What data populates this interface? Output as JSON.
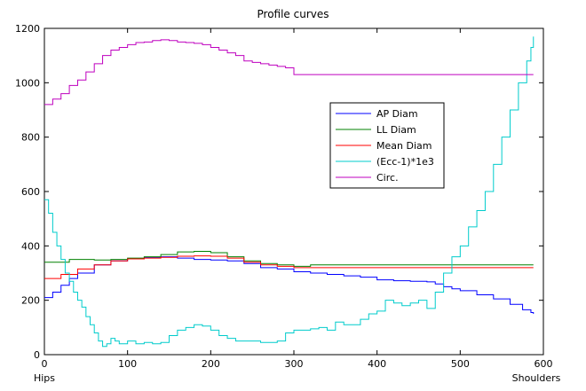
{
  "chart_data": {
    "type": "line",
    "title": "Profile curves",
    "xlim": [
      0,
      600
    ],
    "ylim": [
      0,
      1200
    ],
    "x_ticks": [
      0,
      100,
      200,
      300,
      400,
      500,
      600
    ],
    "y_ticks": [
      0,
      200,
      400,
      600,
      800,
      1000,
      1200
    ],
    "x_end_labels": {
      "start": "Hips",
      "end": "Shoulders"
    },
    "legend_position": "center-right",
    "grid": false,
    "series": [
      {
        "name": "AP Diam",
        "color": "#0000ff",
        "points": [
          [
            0,
            210
          ],
          [
            10,
            230
          ],
          [
            20,
            255
          ],
          [
            30,
            280
          ],
          [
            40,
            300
          ],
          [
            60,
            330
          ],
          [
            80,
            345
          ],
          [
            100,
            352
          ],
          [
            120,
            358
          ],
          [
            140,
            360
          ],
          [
            160,
            355
          ],
          [
            180,
            350
          ],
          [
            200,
            348
          ],
          [
            220,
            345
          ],
          [
            240,
            335
          ],
          [
            260,
            320
          ],
          [
            280,
            315
          ],
          [
            300,
            305
          ],
          [
            320,
            300
          ],
          [
            340,
            295
          ],
          [
            360,
            290
          ],
          [
            380,
            285
          ],
          [
            400,
            275
          ],
          [
            420,
            272
          ],
          [
            440,
            270
          ],
          [
            460,
            268
          ],
          [
            470,
            260
          ],
          [
            480,
            250
          ],
          [
            490,
            242
          ],
          [
            500,
            235
          ],
          [
            520,
            220
          ],
          [
            540,
            205
          ],
          [
            560,
            185
          ],
          [
            575,
            165
          ],
          [
            585,
            155
          ],
          [
            588,
            150
          ]
        ]
      },
      {
        "name": "LL Diam",
        "color": "#008000",
        "points": [
          [
            0,
            340
          ],
          [
            20,
            340
          ],
          [
            30,
            350
          ],
          [
            60,
            348
          ],
          [
            80,
            350
          ],
          [
            100,
            355
          ],
          [
            120,
            360
          ],
          [
            140,
            368
          ],
          [
            160,
            378
          ],
          [
            180,
            380
          ],
          [
            200,
            375
          ],
          [
            220,
            360
          ],
          [
            240,
            345
          ],
          [
            260,
            335
          ],
          [
            280,
            330
          ],
          [
            300,
            325
          ],
          [
            320,
            330
          ],
          [
            400,
            330
          ],
          [
            500,
            330
          ],
          [
            588,
            330
          ]
        ]
      },
      {
        "name": "Mean Diam",
        "color": "#ff0000",
        "points": [
          [
            0,
            280
          ],
          [
            20,
            295
          ],
          [
            40,
            315
          ],
          [
            60,
            330
          ],
          [
            80,
            345
          ],
          [
            100,
            352
          ],
          [
            120,
            355
          ],
          [
            140,
            358
          ],
          [
            160,
            362
          ],
          [
            180,
            363
          ],
          [
            200,
            362
          ],
          [
            220,
            355
          ],
          [
            240,
            340
          ],
          [
            260,
            330
          ],
          [
            280,
            325
          ],
          [
            300,
            320
          ],
          [
            400,
            320
          ],
          [
            500,
            320
          ],
          [
            588,
            320
          ]
        ]
      },
      {
        "name": "(Ecc-1)*1e3",
        "color": "#00cccc",
        "points": [
          [
            0,
            570
          ],
          [
            5,
            520
          ],
          [
            10,
            450
          ],
          [
            15,
            400
          ],
          [
            20,
            350
          ],
          [
            25,
            300
          ],
          [
            30,
            270
          ],
          [
            35,
            230
          ],
          [
            40,
            200
          ],
          [
            45,
            175
          ],
          [
            50,
            140
          ],
          [
            55,
            110
          ],
          [
            60,
            80
          ],
          [
            65,
            50
          ],
          [
            70,
            30
          ],
          [
            75,
            40
          ],
          [
            80,
            60
          ],
          [
            85,
            50
          ],
          [
            90,
            40
          ],
          [
            100,
            50
          ],
          [
            110,
            40
          ],
          [
            120,
            45
          ],
          [
            130,
            40
          ],
          [
            140,
            45
          ],
          [
            150,
            70
          ],
          [
            160,
            90
          ],
          [
            170,
            100
          ],
          [
            180,
            110
          ],
          [
            190,
            105
          ],
          [
            200,
            90
          ],
          [
            210,
            70
          ],
          [
            220,
            60
          ],
          [
            230,
            50
          ],
          [
            240,
            50
          ],
          [
            260,
            45
          ],
          [
            280,
            50
          ],
          [
            290,
            80
          ],
          [
            300,
            90
          ],
          [
            320,
            95
          ],
          [
            330,
            100
          ],
          [
            340,
            90
          ],
          [
            350,
            120
          ],
          [
            360,
            110
          ],
          [
            380,
            130
          ],
          [
            390,
            150
          ],
          [
            400,
            160
          ],
          [
            410,
            200
          ],
          [
            420,
            190
          ],
          [
            430,
            180
          ],
          [
            440,
            190
          ],
          [
            450,
            200
          ],
          [
            460,
            170
          ],
          [
            470,
            230
          ],
          [
            480,
            300
          ],
          [
            490,
            360
          ],
          [
            500,
            400
          ],
          [
            510,
            470
          ],
          [
            520,
            530
          ],
          [
            530,
            600
          ],
          [
            540,
            700
          ],
          [
            550,
            800
          ],
          [
            560,
            900
          ],
          [
            570,
            1000
          ],
          [
            580,
            1080
          ],
          [
            585,
            1130
          ],
          [
            588,
            1170
          ]
        ]
      },
      {
        "name": "Circ.",
        "color": "#bf00bf",
        "points": [
          [
            0,
            920
          ],
          [
            10,
            940
          ],
          [
            20,
            960
          ],
          [
            30,
            990
          ],
          [
            40,
            1010
          ],
          [
            50,
            1040
          ],
          [
            60,
            1070
          ],
          [
            70,
            1100
          ],
          [
            80,
            1120
          ],
          [
            90,
            1130
          ],
          [
            100,
            1140
          ],
          [
            110,
            1148
          ],
          [
            120,
            1150
          ],
          [
            130,
            1155
          ],
          [
            140,
            1158
          ],
          [
            150,
            1155
          ],
          [
            160,
            1150
          ],
          [
            170,
            1148
          ],
          [
            180,
            1145
          ],
          [
            190,
            1140
          ],
          [
            200,
            1130
          ],
          [
            210,
            1120
          ],
          [
            220,
            1110
          ],
          [
            230,
            1100
          ],
          [
            240,
            1080
          ],
          [
            250,
            1075
          ],
          [
            260,
            1070
          ],
          [
            270,
            1065
          ],
          [
            280,
            1060
          ],
          [
            290,
            1055
          ],
          [
            300,
            1030
          ],
          [
            350,
            1030
          ],
          [
            400,
            1030
          ],
          [
            450,
            1030
          ],
          [
            500,
            1030
          ],
          [
            550,
            1030
          ],
          [
            588,
            1030
          ]
        ]
      }
    ]
  }
}
